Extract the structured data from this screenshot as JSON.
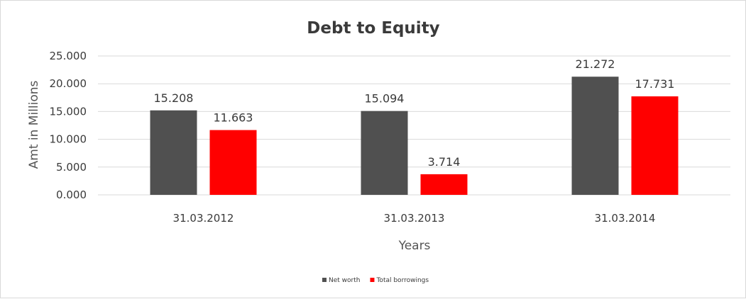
{
  "chart_data": {
    "type": "bar",
    "title": "Debt to Equity",
    "xlabel": "Years",
    "ylabel": "Amt in Millions",
    "categories": [
      "31.03.2012",
      "31.03.2013",
      "31.03.2014"
    ],
    "series": [
      {
        "name": "Net worth",
        "values": [
          15.208,
          15.094,
          21.272
        ],
        "color": "#505050"
      },
      {
        "name": "Total borrowings",
        "values": [
          11.663,
          3.714,
          17.731
        ],
        "color": "#ff0000"
      }
    ],
    "data_labels": [
      [
        "15.208",
        "15.094",
        "21.272"
      ],
      [
        "11.663",
        "3.714",
        "17.731"
      ]
    ],
    "ylim": [
      0,
      25
    ],
    "y_ticks": [
      "0.000",
      "5.000",
      "10.000",
      "15.000",
      "20.000",
      "25.000"
    ],
    "grid": true,
    "legend_position": "bottom"
  }
}
